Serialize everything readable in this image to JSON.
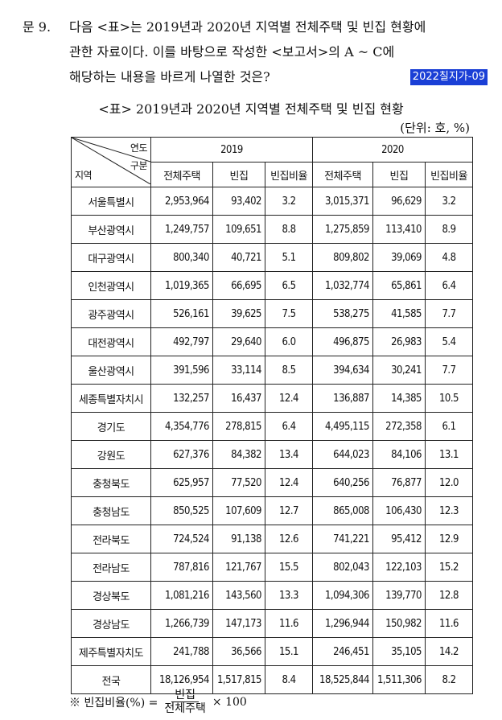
{
  "question": {
    "number": "문  9.",
    "line1": "다음 <표>는 2019년과 2020년 지역별 전체주택 및 빈집 현황에",
    "line2": "관한 자료이다. 이를 바탕으로 작성한 <보고서>의 A ~ C에",
    "line3": "해당하는 내용을 바르게 나열한 것은?",
    "tag": "2022칠지가-09"
  },
  "table_title": "<표> 2019년과 2020년 지역별 전체주택 및 빈집 현황",
  "unit": "(단위: 호, %)",
  "header": {
    "year_label": "연도",
    "category_label": "구분",
    "region_label": "지역",
    "year1": "2019",
    "year2": "2020",
    "col_total": "전체주택",
    "col_vacant": "빈집",
    "col_ratio": "빈집비율"
  },
  "rows": [
    {
      "region": "서울특별시",
      "t19": "2,953,964",
      "v19": "93,402",
      "r19": "3.2",
      "t20": "3,015,371",
      "v20": "96,629",
      "r20": "3.2"
    },
    {
      "region": "부산광역시",
      "t19": "1,249,757",
      "v19": "109,651",
      "r19": "8.8",
      "t20": "1,275,859",
      "v20": "113,410",
      "r20": "8.9"
    },
    {
      "region": "대구광역시",
      "t19": "800,340",
      "v19": "40,721",
      "r19": "5.1",
      "t20": "809,802",
      "v20": "39,069",
      "r20": "4.8"
    },
    {
      "region": "인천광역시",
      "t19": "1,019,365",
      "v19": "66,695",
      "r19": "6.5",
      "t20": "1,032,774",
      "v20": "65,861",
      "r20": "6.4"
    },
    {
      "region": "광주광역시",
      "t19": "526,161",
      "v19": "39,625",
      "r19": "7.5",
      "t20": "538,275",
      "v20": "41,585",
      "r20": "7.7"
    },
    {
      "region": "대전광역시",
      "t19": "492,797",
      "v19": "29,640",
      "r19": "6.0",
      "t20": "496,875",
      "v20": "26,983",
      "r20": "5.4"
    },
    {
      "region": "울산광역시",
      "t19": "391,596",
      "v19": "33,114",
      "r19": "8.5",
      "t20": "394,634",
      "v20": "30,241",
      "r20": "7.7"
    },
    {
      "region": "세종특별자치시",
      "t19": "132,257",
      "v19": "16,437",
      "r19": "12.4",
      "t20": "136,887",
      "v20": "14,385",
      "r20": "10.5"
    },
    {
      "region": "경기도",
      "t19": "4,354,776",
      "v19": "278,815",
      "r19": "6.4",
      "t20": "4,495,115",
      "v20": "272,358",
      "r20": "6.1"
    },
    {
      "region": "강원도",
      "t19": "627,376",
      "v19": "84,382",
      "r19": "13.4",
      "t20": "644,023",
      "v20": "84,106",
      "r20": "13.1"
    },
    {
      "region": "충청북도",
      "t19": "625,957",
      "v19": "77,520",
      "r19": "12.4",
      "t20": "640,256",
      "v20": "76,877",
      "r20": "12.0"
    },
    {
      "region": "충청남도",
      "t19": "850,525",
      "v19": "107,609",
      "r19": "12.7",
      "t20": "865,008",
      "v20": "106,430",
      "r20": "12.3"
    },
    {
      "region": "전라북도",
      "t19": "724,524",
      "v19": "91,138",
      "r19": "12.6",
      "t20": "741,221",
      "v20": "95,412",
      "r20": "12.9"
    },
    {
      "region": "전라남도",
      "t19": "787,816",
      "v19": "121,767",
      "r19": "15.5",
      "t20": "802,043",
      "v20": "122,103",
      "r20": "15.2"
    },
    {
      "region": "경상북도",
      "t19": "1,081,216",
      "v19": "143,560",
      "r19": "13.3",
      "t20": "1,094,306",
      "v20": "139,770",
      "r20": "12.8"
    },
    {
      "region": "경상남도",
      "t19": "1,266,739",
      "v19": "147,173",
      "r19": "11.6",
      "t20": "1,296,944",
      "v20": "150,982",
      "r20": "11.6"
    },
    {
      "region": "제주특별자치도",
      "t19": "241,788",
      "v19": "36,566",
      "r19": "15.1",
      "t20": "246,451",
      "v20": "35,105",
      "r20": "14.2"
    },
    {
      "region": "전국",
      "t19": "18,126,954",
      "v19": "1,517,815",
      "r19": "8.4",
      "t20": "18,525,844",
      "v20": "1,511,306",
      "r20": "8.2"
    }
  ],
  "footnote": {
    "mark": "※ 빈집비율(%) =",
    "numerator": "빈집",
    "denominator": "전체주택",
    "times": "× 100"
  }
}
